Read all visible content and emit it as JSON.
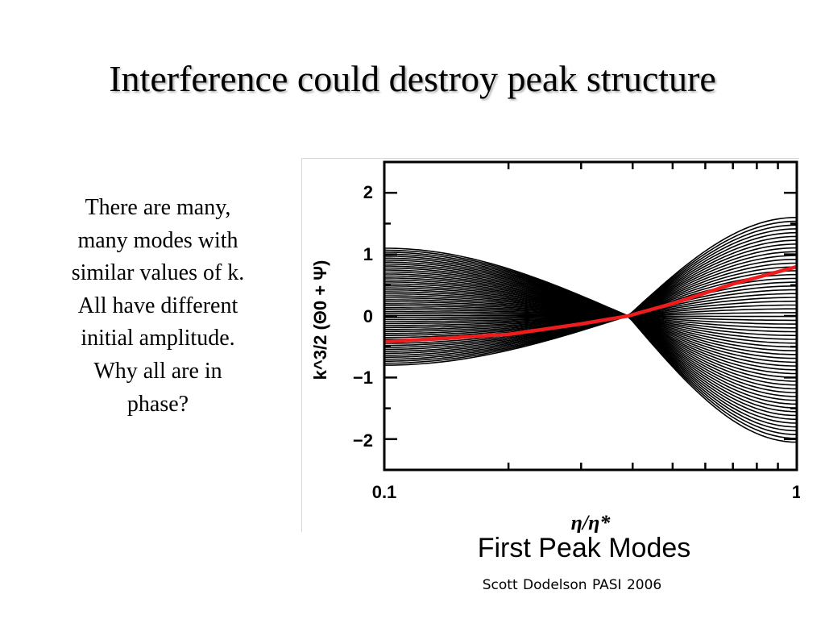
{
  "slide": {
    "title": "Interference could destroy peak structure",
    "body_lines": [
      "There are many,",
      "many modes with",
      "similar values of k.",
      "All have different",
      "initial amplitude.",
      "Why all are in",
      "phase?"
    ],
    "caption": "First Peak Modes",
    "footer": "Scott Dodelson  PASI 2006"
  },
  "chart_data": {
    "type": "line",
    "title": "",
    "xlabel": "η/η*",
    "ylabel": "k^3/2 (Θ0 + Ψ)",
    "xscale": "log",
    "xlim": [
      0.1,
      1
    ],
    "ylim": [
      -2.5,
      2.5
    ],
    "x_tick_labels": [
      "0.1",
      "1"
    ],
    "y_tick_labels": [
      "2",
      "1",
      "0",
      "−1",
      "−2"
    ],
    "grid": false,
    "node": {
      "x": 0.39,
      "y": 0.0
    },
    "mode_family": {
      "count": 60,
      "color": "#000000",
      "y_at_x_0_1_range": [
        -0.8,
        1.1
      ],
      "y_at_x_1_range": [
        -2.05,
        1.6
      ]
    },
    "highlighted_mode": {
      "color": "#ee1c1c",
      "x": [
        0.1,
        0.2,
        0.3,
        0.39,
        0.5,
        0.7,
        1.0
      ],
      "y": [
        -0.42,
        -0.3,
        -0.13,
        0.0,
        0.2,
        0.52,
        0.8
      ]
    }
  }
}
